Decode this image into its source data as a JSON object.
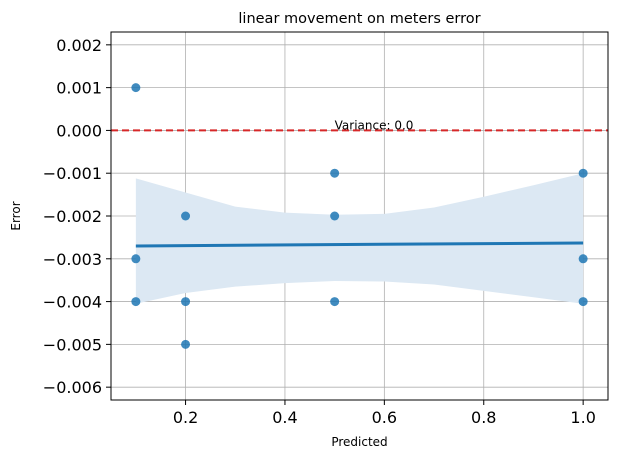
{
  "chart_data": {
    "type": "scatter",
    "title": "linear movement on meters error",
    "xlabel": "Predicted",
    "ylabel": "Error",
    "xlim": [
      0.05,
      1.05
    ],
    "ylim": [
      -0.0063,
      0.0023
    ],
    "x_ticks": [
      0.2,
      0.4,
      0.6,
      0.8,
      1.0
    ],
    "x_tick_labels": [
      "0.2",
      "0.4",
      "0.6",
      "0.8",
      "1.0"
    ],
    "y_ticks": [
      0.002,
      0.001,
      0.0,
      -0.001,
      -0.002,
      -0.003,
      -0.004,
      -0.005,
      -0.006
    ],
    "y_tick_labels": [
      "0.002",
      "0.001",
      "0.000",
      "−0.001",
      "−0.002",
      "−0.003",
      "−0.004",
      "−0.005",
      "−0.006"
    ],
    "grid": true,
    "points": [
      {
        "x": 0.1,
        "y": 0.001
      },
      {
        "x": 0.1,
        "y": -0.003
      },
      {
        "x": 0.1,
        "y": -0.004
      },
      {
        "x": 0.2,
        "y": -0.002
      },
      {
        "x": 0.2,
        "y": -0.004
      },
      {
        "x": 0.2,
        "y": -0.005
      },
      {
        "x": 0.5,
        "y": -0.001
      },
      {
        "x": 0.5,
        "y": -0.002
      },
      {
        "x": 0.5,
        "y": -0.004
      },
      {
        "x": 1.0,
        "y": -0.001
      },
      {
        "x": 1.0,
        "y": -0.003
      },
      {
        "x": 1.0,
        "y": -0.004
      }
    ],
    "regression_line": {
      "x": [
        0.1,
        1.0
      ],
      "y": [
        -0.0027,
        -0.00263
      ]
    },
    "confidence_band": {
      "x": [
        0.1,
        0.2,
        0.3,
        0.4,
        0.5,
        0.6,
        0.7,
        0.8,
        0.9,
        1.0
      ],
      "upper": [
        -0.00112,
        -0.00145,
        -0.00178,
        -0.00192,
        -0.00197,
        -0.00195,
        -0.0018,
        -0.00155,
        -0.00128,
        -0.001
      ],
      "lower": [
        -0.00405,
        -0.0038,
        -0.00365,
        -0.00357,
        -0.00352,
        -0.00353,
        -0.0036,
        -0.00375,
        -0.0039,
        -0.00405
      ]
    },
    "reference_line": {
      "y": 0.0,
      "color": "#d62728",
      "style": "dashed"
    },
    "annotation": {
      "text": "Variance: 0.0",
      "x": 0.5,
      "y": 0.0
    },
    "colors": {
      "points": "#1f77b4",
      "line": "#1f77b4",
      "band": "#dce8f3",
      "grid": "#b0b0b0"
    }
  }
}
